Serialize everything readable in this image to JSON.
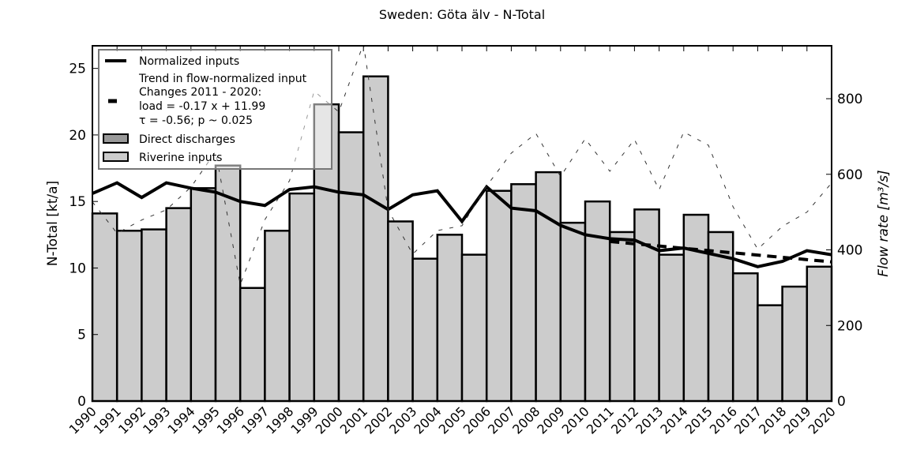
{
  "chart_data": {
    "type": "bar",
    "title": "Sweden: Göta älv - N-Total",
    "xlabel": "",
    "ylabel": "N-Total [kt/a]",
    "ylabel_right": "Flow rate [m³/s]",
    "ylim": [
      0,
      26.7
    ],
    "ylim_right": [
      0,
      940
    ],
    "yticks": [
      0,
      5,
      10,
      15,
      20,
      25
    ],
    "yticks_right": [
      0,
      200,
      400,
      600,
      800
    ],
    "xticks": [
      "1990",
      "1991",
      "1992",
      "1993",
      "1994",
      "1995",
      "1996",
      "1997",
      "1998",
      "1999",
      "2000",
      "2001",
      "2002",
      "2003",
      "2004",
      "2005",
      "2006",
      "2007",
      "2008",
      "2009",
      "2010",
      "2011",
      "2012",
      "2013",
      "2014",
      "2015",
      "2016",
      "2017",
      "2018",
      "2019",
      "2020"
    ],
    "grid": false,
    "legend_placement": "top-left",
    "legend": {
      "normalized": "Normalized inputs",
      "trend_lines": [
        "Trend in flow-normalized input",
        "Changes 2011 - 2020:",
        "load = -0.17 x + 11.99",
        "τ = -0.56; p ~ 0.025"
      ],
      "direct": "Direct discharges",
      "riverine": "Riverine inputs"
    },
    "bars": {
      "name": "Riverine inputs",
      "years": [
        1990,
        1991,
        1992,
        1993,
        1994,
        1995,
        1996,
        1997,
        1998,
        1999,
        2000,
        2001,
        2002,
        2003,
        2004,
        2005,
        2006,
        2007,
        2008,
        2009,
        2010,
        2011,
        2012,
        2013,
        2014,
        2015,
        2016,
        2017,
        2018,
        2019
      ],
      "values": [
        14.1,
        12.8,
        12.9,
        14.5,
        16.0,
        17.7,
        8.5,
        12.8,
        15.6,
        22.3,
        20.2,
        24.4,
        13.5,
        10.7,
        12.5,
        11.0,
        15.8,
        16.3,
        17.2,
        13.4,
        15.0,
        12.7,
        14.4,
        11.0,
        14.0,
        12.7,
        9.6,
        7.2,
        8.6,
        10.1
      ],
      "color": "#cccccc"
    },
    "direct_discharges": {
      "name": "Direct discharges",
      "values": [],
      "color": "#999999"
    },
    "series": [
      {
        "name": "Normalized inputs",
        "axis": "left",
        "x": [
          1990,
          1991,
          1992,
          1993,
          1994,
          1995,
          1996,
          1997,
          1998,
          1999,
          2000,
          2001,
          2002,
          2003,
          2004,
          2005,
          2006,
          2007,
          2008,
          2009,
          2010,
          2011,
          2012,
          2013,
          2014,
          2015,
          2016,
          2017,
          2018,
          2019,
          2020
        ],
        "values": [
          15.6,
          16.4,
          15.3,
          16.4,
          16.0,
          15.7,
          15.0,
          14.7,
          15.9,
          16.1,
          15.7,
          15.5,
          14.4,
          15.5,
          15.8,
          13.5,
          16.1,
          14.5,
          14.3,
          13.2,
          12.5,
          12.2,
          12.1,
          11.3,
          11.5,
          11.1,
          10.7,
          10.1,
          10.5,
          11.3,
          11.0
        ]
      },
      {
        "name": "Trend in flow-normalized input",
        "axis": "left",
        "x": [
          2011,
          2020
        ],
        "values": [
          11.99,
          10.46
        ]
      },
      {
        "name": "Flow rate",
        "axis": "right",
        "x": [
          1990,
          1991,
          1992,
          1993,
          1994,
          1995,
          1996,
          1997,
          1998,
          1999,
          2000,
          2001,
          2002,
          2003,
          2004,
          2005,
          2006,
          2007,
          2008,
          2009,
          2010,
          2011,
          2012,
          2013,
          2014,
          2015,
          2016,
          2017,
          2018,
          2019,
          2020
        ],
        "values": [
          527,
          444,
          479,
          506,
          566,
          660,
          308,
          480,
          583,
          820,
          765,
          945,
          506,
          389,
          451,
          464,
          569,
          656,
          708,
          594,
          694,
          608,
          692,
          559,
          712,
          677,
          514,
          402,
          462,
          500,
          577
        ]
      }
    ]
  }
}
